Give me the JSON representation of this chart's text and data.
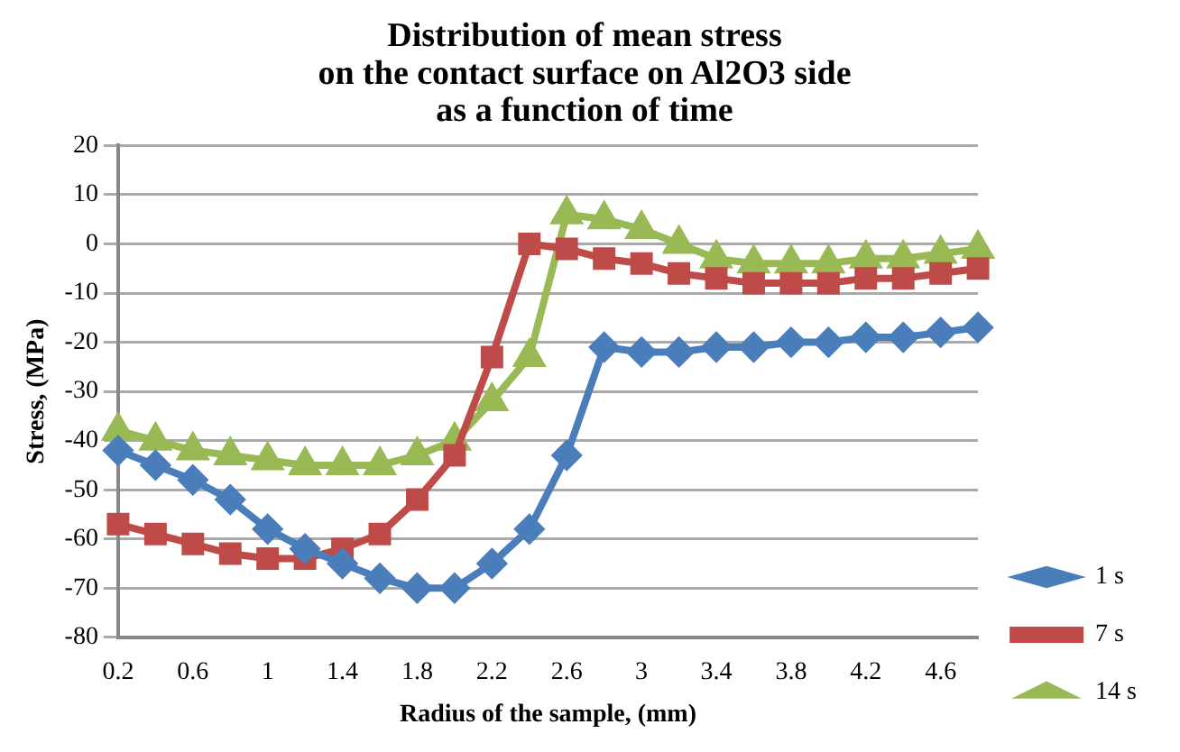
{
  "chart_data": {
    "type": "line",
    "title": "Distribution of mean stress\non the contact surface on Al2O3 side\nas a function of time",
    "xlabel": "Radius of the sample, (mm)",
    "ylabel": "Stress, (MPa)",
    "categories": [
      "0.2",
      null,
      "0.6",
      null,
      "1",
      null,
      "1.4",
      null,
      "1.8",
      null,
      "2.2",
      null,
      "2.6",
      null,
      "3",
      null,
      "3.4",
      null,
      "3.8",
      null,
      "4.2",
      null,
      "4.6",
      null
    ],
    "series": [
      {
        "name": "1 s",
        "color": "#4a7ebb",
        "marker": "diamond",
        "values": [
          -42,
          -45,
          -48,
          -52,
          -58,
          -62,
          -65,
          -68,
          -70,
          -70,
          -65,
          -58,
          -43,
          -21,
          -22,
          -22,
          -21,
          -21,
          -20,
          -20,
          -19,
          -19,
          -18,
          -17
        ]
      },
      {
        "name": "7 s",
        "color": "#be4b48",
        "marker": "square",
        "values": [
          -57,
          -59,
          -61,
          -63,
          -64,
          -64,
          -62,
          -59,
          -52,
          -43,
          -23,
          0,
          -1,
          -3,
          -4,
          -6,
          -7,
          -8,
          -8,
          -8,
          -7,
          -7,
          -6,
          -5
        ]
      },
      {
        "name": "14 s",
        "color": "#98b954",
        "marker": "triangle",
        "values": [
          -38,
          -40,
          -42,
          -43,
          -44,
          -45,
          -45,
          -45,
          -43,
          -40,
          -32,
          -23,
          6,
          5,
          3,
          0,
          -3,
          -4,
          -4,
          -4,
          -3,
          -3,
          -2,
          -1
        ]
      }
    ],
    "ylim": [
      -80,
      20
    ],
    "yticks": [
      -80,
      -70,
      -60,
      -50,
      -40,
      -30,
      -20,
      -10,
      0,
      10,
      20
    ],
    "grid": "y",
    "legend": "right"
  }
}
